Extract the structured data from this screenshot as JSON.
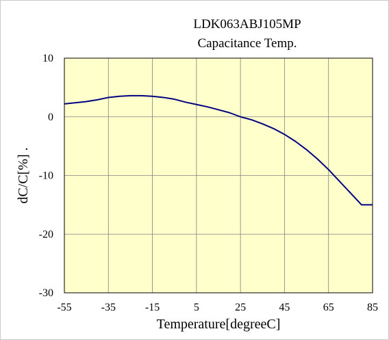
{
  "chart_data": {
    "type": "line",
    "title": "LDK063ABJ105MP",
    "subtitle": "Capacitance Temp.",
    "xlabel": "Temperature[degreeC]",
    "ylabel": "dC/C[%] .",
    "xlim": [
      -55,
      85
    ],
    "ylim": [
      -30,
      10
    ],
    "x_ticks": [
      "-55",
      "-35",
      "-15",
      "5",
      "25",
      "45",
      "65",
      "85"
    ],
    "y_ticks": [
      "10",
      "0",
      "-10",
      "-20",
      "-30"
    ],
    "grid": true,
    "colors": {
      "plot_bg": "#ffffcc",
      "line": "#000080",
      "grid": "#808080"
    },
    "series": [
      {
        "x": [
          -55,
          -45,
          -40,
          -35,
          -30,
          -25,
          -20,
          -15,
          -10,
          -5,
          0,
          5,
          10,
          15,
          20,
          25,
          30,
          35,
          40,
          45,
          50,
          55,
          60,
          65,
          70,
          75,
          80,
          85
        ],
        "y": [
          2.2,
          2.6,
          2.9,
          3.3,
          3.5,
          3.6,
          3.6,
          3.5,
          3.3,
          3.0,
          2.5,
          2.1,
          1.7,
          1.2,
          0.7,
          0.0,
          -0.5,
          -1.2,
          -2.0,
          -3.0,
          -4.2,
          -5.6,
          -7.2,
          -9.0,
          -11.0,
          -13.0,
          -15.0,
          -15.0
        ]
      }
    ]
  }
}
